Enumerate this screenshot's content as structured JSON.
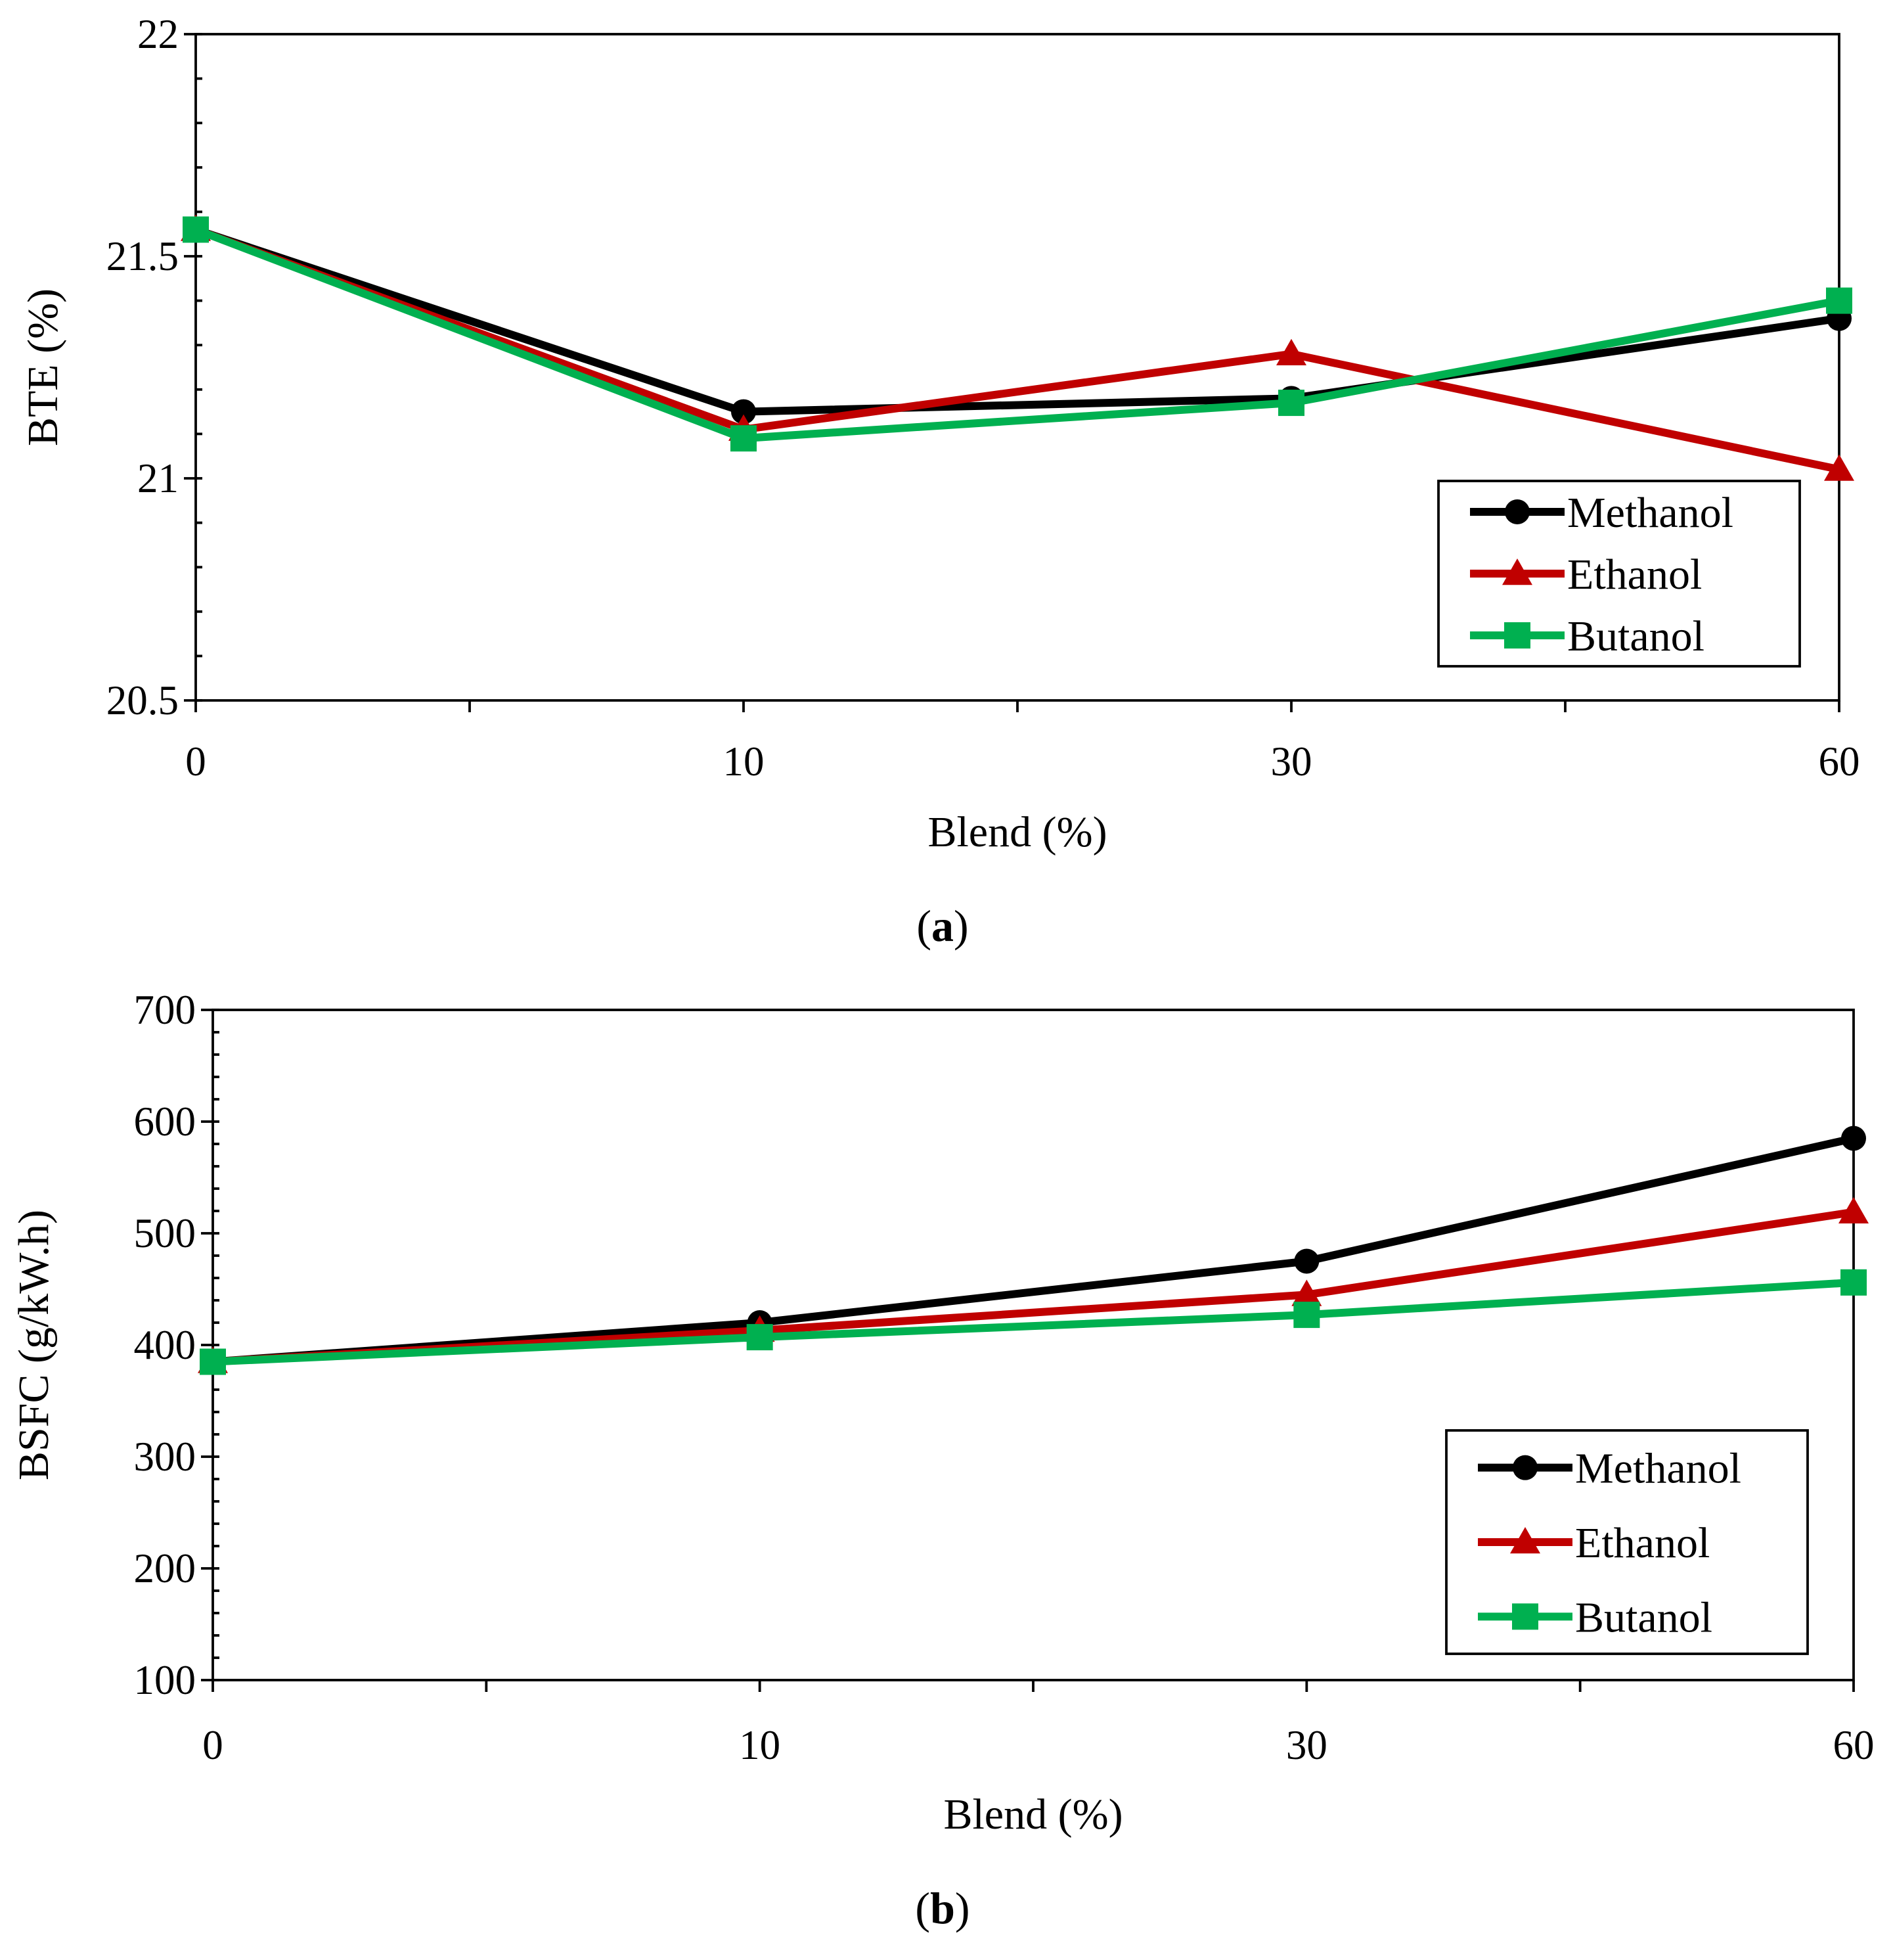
{
  "figure": {
    "panels": [
      {
        "label_open": "(",
        "label_letter": "a",
        "label_close": ")"
      },
      {
        "label_open": "(",
        "label_letter": "b",
        "label_close": ")"
      }
    ]
  },
  "chart_data": [
    {
      "type": "line",
      "title": "",
      "xlabel": "Blend (%)",
      "ylabel": "BTE (%)",
      "categories": [
        "0",
        "10",
        "30",
        "60"
      ],
      "ylim": [
        20.5,
        22
      ],
      "yticks": [
        20.5,
        21,
        21.5,
        22
      ],
      "ytick_labels": [
        "20.5",
        "21",
        "21.5",
        "22"
      ],
      "y_minor_step": 0.1,
      "grid": false,
      "legend_position": "bottom-right",
      "series": [
        {
          "name": "Methanol",
          "color": "#000000",
          "marker": "circle",
          "values": [
            21.56,
            21.15,
            21.18,
            21.36
          ]
        },
        {
          "name": "Ethanol",
          "color": "#c00000",
          "marker": "triangle",
          "values": [
            21.56,
            21.11,
            21.28,
            21.02
          ]
        },
        {
          "name": "Butanol",
          "color": "#00b050",
          "marker": "square",
          "values": [
            21.56,
            21.09,
            21.17,
            21.4
          ]
        }
      ]
    },
    {
      "type": "line",
      "title": "",
      "xlabel": "Blend (%)",
      "ylabel": "BSFC (g/kW.h)",
      "categories": [
        "0",
        "10",
        "30",
        "60"
      ],
      "ylim": [
        100,
        700
      ],
      "yticks": [
        100,
        200,
        300,
        400,
        500,
        600,
        700
      ],
      "ytick_labels": [
        "100",
        "200",
        "300",
        "400",
        "500",
        "600",
        "700"
      ],
      "y_minor_step": 20,
      "grid": false,
      "legend_position": "bottom-right",
      "series": [
        {
          "name": "Methanol",
          "color": "#000000",
          "marker": "circle",
          "values": [
            385,
            420,
            475,
            585
          ]
        },
        {
          "name": "Ethanol",
          "color": "#c00000",
          "marker": "triangle",
          "values": [
            385,
            413,
            445,
            519
          ]
        },
        {
          "name": "Butanol",
          "color": "#00b050",
          "marker": "square",
          "values": [
            385,
            407,
            427,
            456
          ]
        }
      ]
    }
  ]
}
